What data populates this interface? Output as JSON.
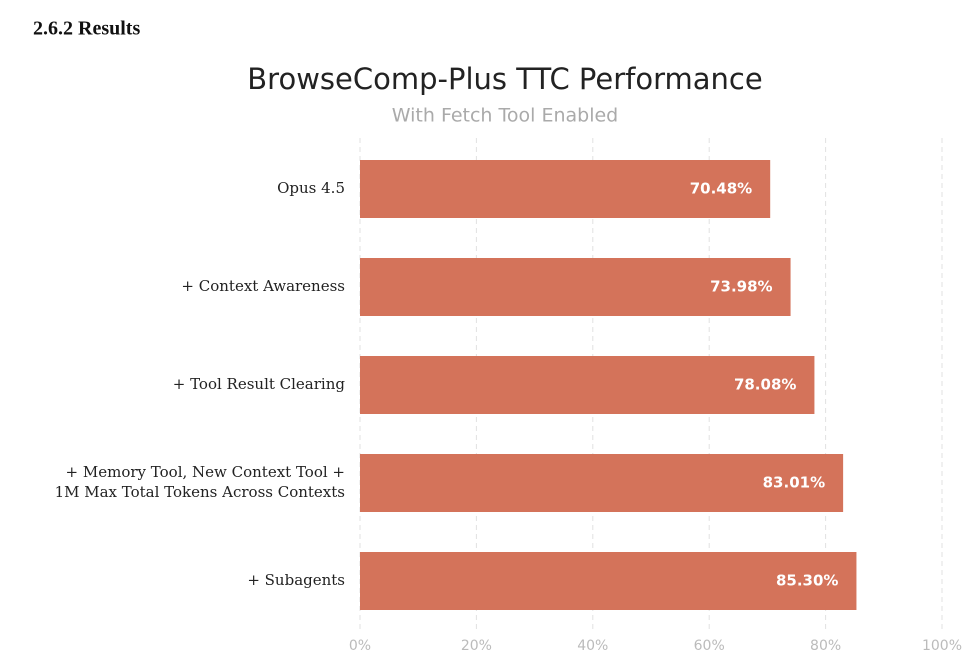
{
  "section_heading": "2.6.2 Results",
  "chart_data": {
    "type": "bar",
    "orientation": "horizontal",
    "title": "BrowseComp-Plus TTC Performance",
    "subtitle": "With Fetch Tool Enabled",
    "categories": [
      "Opus 4.5",
      "+ Context Awareness",
      "+ Tool Result Clearing",
      "+ Memory Tool, New Context Tool +\n1M Max Total Tokens Across Contexts",
      "+ Subagents"
    ],
    "values": [
      70.48,
      73.98,
      78.08,
      83.01,
      85.3
    ],
    "value_labels": [
      "70.48%",
      "73.98%",
      "78.08%",
      "83.01%",
      "85.30%"
    ],
    "color": "#d4735a",
    "xlim": [
      0,
      100
    ],
    "xticks": [
      {
        "value": 0,
        "label": "0%"
      },
      {
        "value": 20,
        "label": "20%"
      },
      {
        "value": 40,
        "label": "40%"
      },
      {
        "value": 60,
        "label": "60%"
      },
      {
        "value": 80,
        "label": "80%"
      },
      {
        "value": 100,
        "label": "100%"
      }
    ],
    "grid": true
  }
}
